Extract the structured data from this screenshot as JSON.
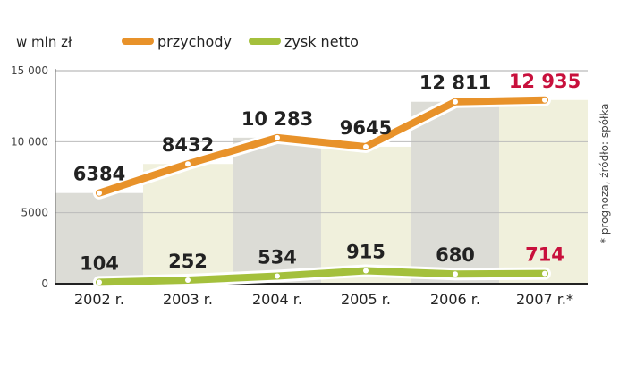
{
  "chart_data": {
    "type": "line",
    "unit_label": "w mln zł",
    "categories": [
      "2002 r.",
      "2003 r.",
      "2004 r.",
      "2005 r.",
      "2006 r.",
      "2007 r.*"
    ],
    "series": [
      {
        "name": "przychody",
        "color": "#e8922a",
        "values": [
          6384,
          8432,
          10283,
          9645,
          12811,
          12935
        ],
        "labels": [
          "6384",
          "8432",
          "10 283",
          "9645",
          "12 811",
          "12 935"
        ]
      },
      {
        "name": "zysk netto",
        "color": "#a4c03c",
        "values": [
          104,
          252,
          534,
          915,
          680,
          714
        ],
        "labels": [
          "104",
          "252",
          "534",
          "915",
          "680",
          "714"
        ]
      }
    ],
    "yticks": [
      0,
      5000,
      10000,
      15000
    ],
    "ytick_labels": [
      "0",
      "5000",
      "10 000",
      "15 000"
    ],
    "ylim": [
      0,
      15000
    ],
    "highlight_color": "#c8103c",
    "column_colors": [
      "#dcdcd6",
      "#f0f0dc"
    ],
    "legend_position": "top",
    "footnote": "* prognoza, źródło: spółka"
  }
}
